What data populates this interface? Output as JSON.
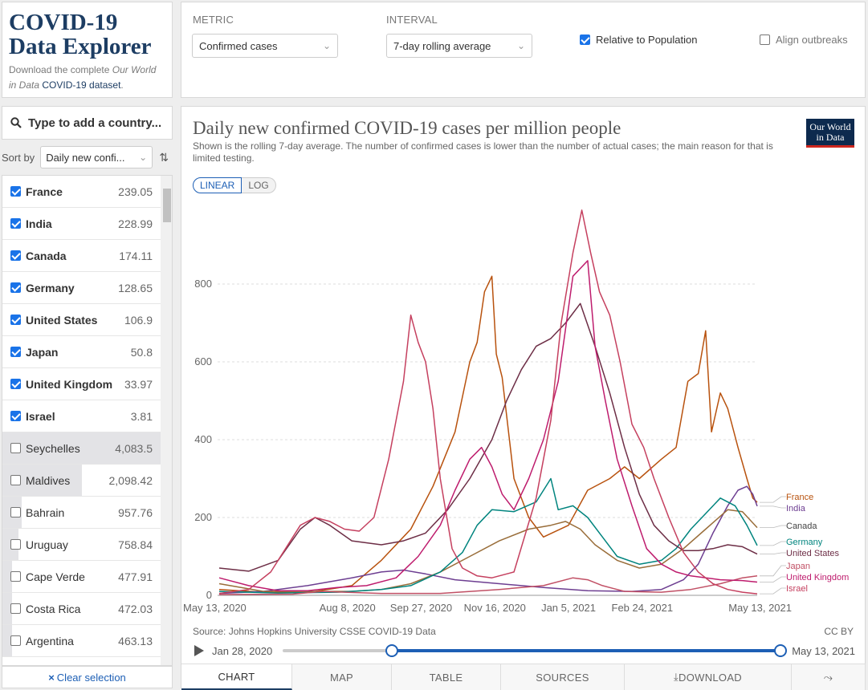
{
  "header": {
    "title_line1": "COVID-19",
    "title_line2": "Data Explorer",
    "desc_prefix": "Download the complete ",
    "desc_italic": "Our World in Data",
    "desc_link": "COVID-19 dataset",
    "desc_suffix": "."
  },
  "controls": {
    "metric_label": "METRIC",
    "metric_value": "Confirmed cases",
    "interval_label": "INTERVAL",
    "interval_value": "7-day rolling average",
    "relative_label": "Relative to Population",
    "relative_checked": true,
    "align_label": "Align outbreaks",
    "align_checked": false
  },
  "search": {
    "placeholder": "Type to add a country..."
  },
  "sort": {
    "label": "Sort by",
    "value": "Daily new confi..."
  },
  "countries": [
    {
      "name": "France",
      "value": "239.05",
      "selected": true
    },
    {
      "name": "India",
      "value": "228.99",
      "selected": true
    },
    {
      "name": "Canada",
      "value": "174.11",
      "selected": true
    },
    {
      "name": "Germany",
      "value": "128.65",
      "selected": true
    },
    {
      "name": "United States",
      "value": "106.9",
      "selected": true
    },
    {
      "name": "Japan",
      "value": "50.8",
      "selected": true
    },
    {
      "name": "United Kingdom",
      "value": "33.97",
      "selected": true
    },
    {
      "name": "Israel",
      "value": "3.81",
      "selected": true
    },
    {
      "name": "Seychelles",
      "value": "4,083.5",
      "selected": false,
      "bar": 1.0
    },
    {
      "name": "Maldives",
      "value": "2,098.42",
      "selected": false,
      "bar": 0.5
    },
    {
      "name": "Bahrain",
      "value": "957.76",
      "selected": false,
      "bar": 0.12
    },
    {
      "name": "Uruguay",
      "value": "758.84",
      "selected": false,
      "bar": 0.1
    },
    {
      "name": "Cape Verde",
      "value": "477.91",
      "selected": false,
      "bar": 0.06
    },
    {
      "name": "Costa Rica",
      "value": "472.03",
      "selected": false,
      "bar": 0.06
    },
    {
      "name": "Argentina",
      "value": "463.13",
      "selected": false,
      "bar": 0.06
    }
  ],
  "clear_selection": "Clear selection",
  "chart": {
    "title": "Daily new confirmed COVID-19 cases per million people",
    "subtitle": "Shown is the rolling 7-day average. The number of confirmed cases is lower than the number of actual cases; the main reason for that is limited testing.",
    "logo_line1": "Our World",
    "logo_line2": "in Data",
    "scale_linear": "LINEAR",
    "scale_log": "LOG",
    "source": "Source: Johns Hopkins University CSSE COVID-19 Data",
    "license": "CC BY",
    "timeline_start": "Jan 28, 2020",
    "timeline_end": "May 13, 2021",
    "timeline_selection": [
      0.22,
      1.0
    ]
  },
  "tabs": [
    {
      "label": "CHART",
      "active": true
    },
    {
      "label": "MAP",
      "active": false
    },
    {
      "label": "TABLE",
      "active": false
    },
    {
      "label": "SOURCES",
      "active": false
    },
    {
      "label": "DOWNLOAD",
      "active": false
    },
    {
      "label": "",
      "active": false
    }
  ],
  "chart_data": {
    "type": "line",
    "title": "Daily new confirmed COVID-19 cases per million people",
    "xlabel": "",
    "ylabel": "",
    "ylim": [
      0,
      1000
    ],
    "yticks": [
      0,
      200,
      400,
      600,
      800
    ],
    "x_range_days": [
      0,
      365
    ],
    "x_ticks": [
      {
        "label": "May 13, 2020",
        "day": 0
      },
      {
        "label": "Aug 8, 2020",
        "day": 87
      },
      {
        "label": "Sep 27, 2020",
        "day": 137
      },
      {
        "label": "Nov 16, 2020",
        "day": 187
      },
      {
        "label": "Jan 5, 2021",
        "day": 237
      },
      {
        "label": "Feb 24, 2021",
        "day": 287
      },
      {
        "label": "May 13, 2021",
        "day": 365
      }
    ],
    "series": [
      {
        "name": "France",
        "color": "#b8520e",
        "points": [
          [
            0,
            15
          ],
          [
            30,
            8
          ],
          [
            60,
            7
          ],
          [
            90,
            25
          ],
          [
            110,
            90
          ],
          [
            130,
            170
          ],
          [
            145,
            280
          ],
          [
            160,
            420
          ],
          [
            170,
            600
          ],
          [
            175,
            650
          ],
          [
            180,
            780
          ],
          [
            185,
            820
          ],
          [
            188,
            620
          ],
          [
            192,
            560
          ],
          [
            200,
            300
          ],
          [
            210,
            200
          ],
          [
            220,
            150
          ],
          [
            237,
            180
          ],
          [
            250,
            270
          ],
          [
            265,
            300
          ],
          [
            275,
            330
          ],
          [
            285,
            300
          ],
          [
            300,
            350
          ],
          [
            310,
            380
          ],
          [
            318,
            550
          ],
          [
            325,
            570
          ],
          [
            330,
            680
          ],
          [
            334,
            420
          ],
          [
            340,
            520
          ],
          [
            345,
            480
          ],
          [
            352,
            380
          ],
          [
            358,
            300
          ],
          [
            362,
            250
          ],
          [
            365,
            239
          ]
        ]
      },
      {
        "name": "India",
        "color": "#6d3e91",
        "points": [
          [
            0,
            5
          ],
          [
            30,
            10
          ],
          [
            60,
            25
          ],
          [
            90,
            45
          ],
          [
            110,
            60
          ],
          [
            125,
            65
          ],
          [
            140,
            55
          ],
          [
            160,
            40
          ],
          [
            190,
            30
          ],
          [
            220,
            20
          ],
          [
            250,
            12
          ],
          [
            280,
            10
          ],
          [
            300,
            15
          ],
          [
            315,
            40
          ],
          [
            325,
            80
          ],
          [
            335,
            160
          ],
          [
            345,
            230
          ],
          [
            352,
            270
          ],
          [
            358,
            280
          ],
          [
            362,
            260
          ],
          [
            365,
            229
          ]
        ]
      },
      {
        "name": "Canada",
        "color": "#996d39",
        "points": [
          [
            0,
            30
          ],
          [
            30,
            10
          ],
          [
            60,
            10
          ],
          [
            90,
            10
          ],
          [
            110,
            15
          ],
          [
            130,
            30
          ],
          [
            150,
            60
          ],
          [
            170,
            100
          ],
          [
            190,
            140
          ],
          [
            210,
            170
          ],
          [
            225,
            180
          ],
          [
            235,
            190
          ],
          [
            245,
            170
          ],
          [
            255,
            130
          ],
          [
            270,
            90
          ],
          [
            285,
            70
          ],
          [
            300,
            80
          ],
          [
            315,
            120
          ],
          [
            330,
            170
          ],
          [
            345,
            220
          ],
          [
            355,
            215
          ],
          [
            365,
            174
          ]
        ]
      },
      {
        "name": "Germany",
        "color": "#00847e",
        "points": [
          [
            0,
            10
          ],
          [
            40,
            6
          ],
          [
            80,
            8
          ],
          [
            110,
            15
          ],
          [
            130,
            25
          ],
          [
            150,
            60
          ],
          [
            165,
            110
          ],
          [
            175,
            180
          ],
          [
            185,
            220
          ],
          [
            200,
            215
          ],
          [
            215,
            240
          ],
          [
            225,
            300
          ],
          [
            230,
            220
          ],
          [
            240,
            230
          ],
          [
            250,
            200
          ],
          [
            260,
            150
          ],
          [
            270,
            100
          ],
          [
            285,
            80
          ],
          [
            300,
            90
          ],
          [
            310,
            120
          ],
          [
            320,
            170
          ],
          [
            330,
            210
          ],
          [
            340,
            250
          ],
          [
            350,
            230
          ],
          [
            358,
            180
          ],
          [
            365,
            128
          ]
        ]
      },
      {
        "name": "United States",
        "color": "#6d2e46",
        "points": [
          [
            0,
            70
          ],
          [
            20,
            62
          ],
          [
            40,
            90
          ],
          [
            55,
            170
          ],
          [
            65,
            200
          ],
          [
            75,
            180
          ],
          [
            90,
            140
          ],
          [
            110,
            130
          ],
          [
            125,
            140
          ],
          [
            140,
            160
          ],
          [
            155,
            220
          ],
          [
            170,
            300
          ],
          [
            185,
            400
          ],
          [
            195,
            500
          ],
          [
            205,
            580
          ],
          [
            215,
            640
          ],
          [
            225,
            660
          ],
          [
            235,
            700
          ],
          [
            245,
            750
          ],
          [
            255,
            640
          ],
          [
            265,
            520
          ],
          [
            275,
            380
          ],
          [
            285,
            260
          ],
          [
            295,
            180
          ],
          [
            305,
            140
          ],
          [
            315,
            115
          ],
          [
            325,
            115
          ],
          [
            335,
            120
          ],
          [
            345,
            130
          ],
          [
            355,
            125
          ],
          [
            365,
            106
          ]
        ]
      },
      {
        "name": "Japan",
        "color": "#c15065",
        "points": [
          [
            0,
            2
          ],
          [
            50,
            3
          ],
          [
            70,
            10
          ],
          [
            85,
            8
          ],
          [
            110,
            5
          ],
          [
            150,
            5
          ],
          [
            190,
            15
          ],
          [
            220,
            25
          ],
          [
            240,
            45
          ],
          [
            250,
            40
          ],
          [
            260,
            25
          ],
          [
            275,
            10
          ],
          [
            300,
            8
          ],
          [
            320,
            15
          ],
          [
            340,
            30
          ],
          [
            355,
            45
          ],
          [
            365,
            50
          ]
        ]
      },
      {
        "name": "United Kingdom",
        "color": "#be1c6d",
        "points": [
          [
            0,
            45
          ],
          [
            20,
            25
          ],
          [
            40,
            12
          ],
          [
            60,
            12
          ],
          [
            80,
            20
          ],
          [
            100,
            25
          ],
          [
            120,
            45
          ],
          [
            135,
            100
          ],
          [
            150,
            180
          ],
          [
            160,
            270
          ],
          [
            170,
            350
          ],
          [
            178,
            380
          ],
          [
            185,
            330
          ],
          [
            192,
            260
          ],
          [
            200,
            220
          ],
          [
            210,
            300
          ],
          [
            220,
            400
          ],
          [
            230,
            550
          ],
          [
            240,
            820
          ],
          [
            250,
            860
          ],
          [
            255,
            640
          ],
          [
            262,
            500
          ],
          [
            270,
            350
          ],
          [
            280,
            230
          ],
          [
            290,
            120
          ],
          [
            300,
            80
          ],
          [
            310,
            60
          ],
          [
            320,
            50
          ],
          [
            340,
            40
          ],
          [
            355,
            38
          ],
          [
            365,
            34
          ]
        ]
      },
      {
        "name": "Israel",
        "color": "#c5405f",
        "points": [
          [
            0,
            5
          ],
          [
            20,
            15
          ],
          [
            35,
            60
          ],
          [
            45,
            120
          ],
          [
            55,
            180
          ],
          [
            65,
            200
          ],
          [
            75,
            190
          ],
          [
            85,
            170
          ],
          [
            95,
            165
          ],
          [
            105,
            200
          ],
          [
            115,
            350
          ],
          [
            125,
            550
          ],
          [
            130,
            720
          ],
          [
            135,
            650
          ],
          [
            140,
            600
          ],
          [
            145,
            480
          ],
          [
            150,
            300
          ],
          [
            158,
            120
          ],
          [
            165,
            70
          ],
          [
            175,
            50
          ],
          [
            185,
            45
          ],
          [
            200,
            60
          ],
          [
            215,
            250
          ],
          [
            225,
            450
          ],
          [
            232,
            700
          ],
          [
            240,
            880
          ],
          [
            246,
            990
          ],
          [
            252,
            880
          ],
          [
            258,
            780
          ],
          [
            265,
            720
          ],
          [
            272,
            600
          ],
          [
            280,
            440
          ],
          [
            288,
            380
          ],
          [
            295,
            300
          ],
          [
            305,
            200
          ],
          [
            315,
            110
          ],
          [
            325,
            60
          ],
          [
            335,
            30
          ],
          [
            345,
            15
          ],
          [
            355,
            8
          ],
          [
            365,
            4
          ]
        ]
      }
    ]
  }
}
